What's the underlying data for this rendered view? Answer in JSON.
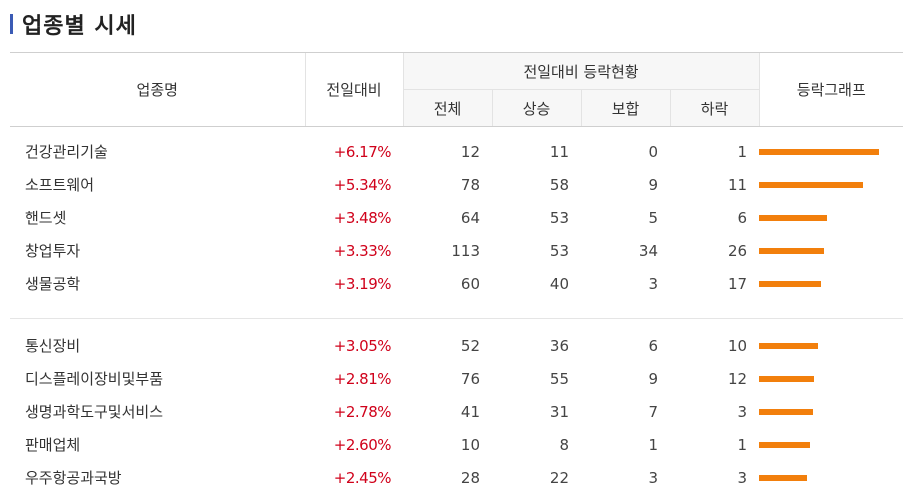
{
  "title": "업종별 시세",
  "headers": {
    "name": "업종명",
    "change": "전일대비",
    "status_group": "전일대비 등락현황",
    "total": "전체",
    "up": "상승",
    "flat": "보합",
    "down": "하락",
    "graph": "등락그래프"
  },
  "colors": {
    "accent": "#3b5bb5",
    "up": "#d0021b",
    "bar": "#f27f0c"
  },
  "groups": [
    [
      {
        "name": "건강관리기술",
        "change": "+6.17%",
        "total": "12",
        "up": "11",
        "flat": "0",
        "down": "1",
        "rate": 6.17
      },
      {
        "name": "소프트웨어",
        "change": "+5.34%",
        "total": "78",
        "up": "58",
        "flat": "9",
        "down": "11",
        "rate": 5.34
      },
      {
        "name": "핸드셋",
        "change": "+3.48%",
        "total": "64",
        "up": "53",
        "flat": "5",
        "down": "6",
        "rate": 3.48
      },
      {
        "name": "창업투자",
        "change": "+3.33%",
        "total": "113",
        "up": "53",
        "flat": "34",
        "down": "26",
        "rate": 3.33
      },
      {
        "name": "생물공학",
        "change": "+3.19%",
        "total": "60",
        "up": "40",
        "flat": "3",
        "down": "17",
        "rate": 3.19
      }
    ],
    [
      {
        "name": "통신장비",
        "change": "+3.05%",
        "total": "52",
        "up": "36",
        "flat": "6",
        "down": "10",
        "rate": 3.05
      },
      {
        "name": "디스플레이장비및부품",
        "change": "+2.81%",
        "total": "76",
        "up": "55",
        "flat": "9",
        "down": "12",
        "rate": 2.81
      },
      {
        "name": "생명과학도구및서비스",
        "change": "+2.78%",
        "total": "41",
        "up": "31",
        "flat": "7",
        "down": "3",
        "rate": 2.78
      },
      {
        "name": "판매업체",
        "change": "+2.60%",
        "total": "10",
        "up": "8",
        "flat": "1",
        "down": "1",
        "rate": 2.6
      },
      {
        "name": "우주항공과국방",
        "change": "+2.45%",
        "total": "28",
        "up": "22",
        "flat": "3",
        "down": "3",
        "rate": 2.45
      }
    ]
  ]
}
